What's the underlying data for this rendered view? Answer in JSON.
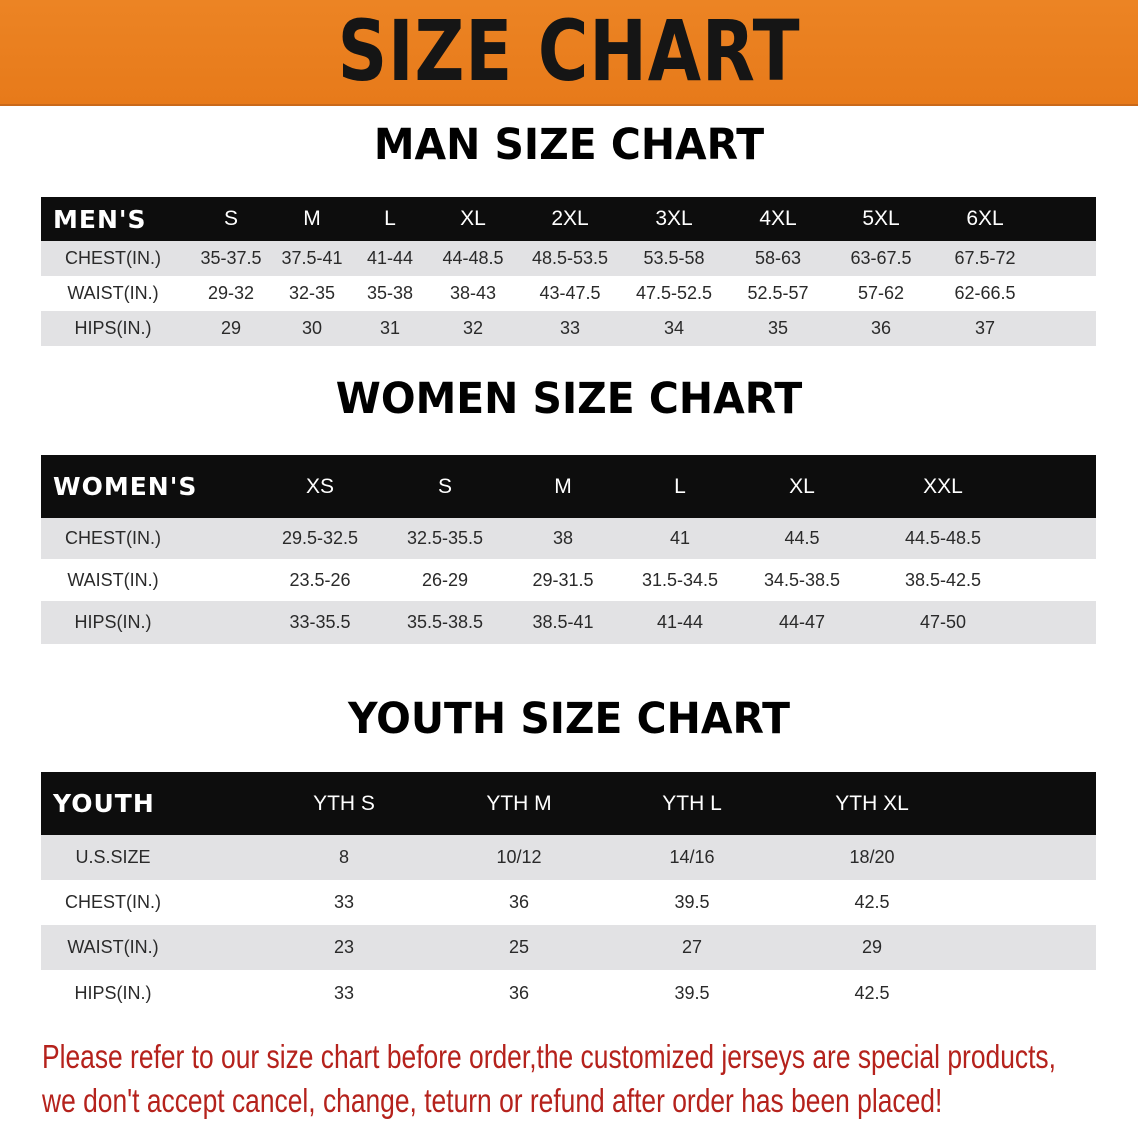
{
  "banner": {
    "title": "SIZE CHART",
    "color": "#e97f1f"
  },
  "men": {
    "title": "MAN SIZE CHART",
    "header": [
      "MEN'S",
      "S",
      "M",
      "L",
      "XL",
      "2XL",
      "3XL",
      "4XL",
      "5XL",
      "6XL"
    ],
    "rows": [
      [
        "CHEST(IN.)",
        "35-37.5",
        "37.5-41",
        "41-44",
        "44-48.5",
        "48.5-53.5",
        "53.5-58",
        "58-63",
        "63-67.5",
        "67.5-72"
      ],
      [
        "WAIST(IN.)",
        "29-32",
        "32-35",
        "35-38",
        "38-43",
        "43-47.5",
        "47.5-52.5",
        "52.5-57",
        "57-62",
        "62-66.5"
      ],
      [
        "HIPS(IN.)",
        "29",
        "30",
        "31",
        "32",
        "33",
        "34",
        "35",
        "36",
        "37"
      ]
    ]
  },
  "women": {
    "title": "WOMEN SIZE CHART",
    "header": [
      "WOMEN'S",
      "XS",
      "S",
      "M",
      "L",
      "XL",
      "XXL"
    ],
    "rows": [
      [
        "CHEST(IN.)",
        "29.5-32.5",
        "32.5-35.5",
        "38",
        "41",
        "44.5",
        "44.5-48.5"
      ],
      [
        "WAIST(IN.)",
        "23.5-26",
        "26-29",
        "29-31.5",
        "31.5-34.5",
        "34.5-38.5",
        "38.5-42.5"
      ],
      [
        "HIPS(IN.)",
        "33-35.5",
        "35.5-38.5",
        "38.5-41",
        "41-44",
        "44-47",
        "47-50"
      ]
    ]
  },
  "youth": {
    "title": "YOUTH SIZE CHART",
    "header": [
      "YOUTH",
      "YTH S",
      "YTH M",
      "YTH L",
      "YTH XL"
    ],
    "rows": [
      [
        "U.S.SIZE",
        "8",
        "10/12",
        "14/16",
        "18/20"
      ],
      [
        "CHEST(IN.)",
        "33",
        "36",
        "39.5",
        "42.5"
      ],
      [
        "WAIST(IN.)",
        "23",
        "25",
        "27",
        "29"
      ],
      [
        "HIPS(IN.)",
        "33",
        "36",
        "39.5",
        "42.5"
      ]
    ]
  },
  "notice": {
    "line1": "Please refer to our size chart before order,the customized jerseys are special products,",
    "line2": "we don't accept cancel, change, teturn or refund after order has been placed!",
    "color": "#b5221c"
  }
}
